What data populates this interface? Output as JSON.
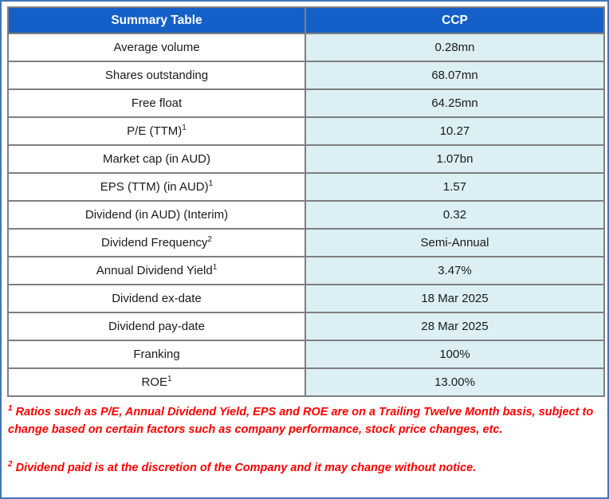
{
  "table": {
    "header": {
      "col1": "Summary Table",
      "col2": "CCP"
    },
    "rows": [
      {
        "label": "Average volume",
        "sup": "",
        "value": "0.28mn"
      },
      {
        "label": "Shares outstanding",
        "sup": "",
        "value": "68.07mn"
      },
      {
        "label": "Free float",
        "sup": "",
        "value": "64.25mn"
      },
      {
        "label": "P/E (TTM)",
        "sup": "1",
        "value": "10.27"
      },
      {
        "label": "Market cap (in AUD)",
        "sup": "",
        "value": "1.07bn"
      },
      {
        "label": "EPS (TTM) (in AUD)",
        "sup": "1",
        "value": "1.57"
      },
      {
        "label": "Dividend (in AUD) (Interim)",
        "sup": "",
        "value": "0.32"
      },
      {
        "label": "Dividend Frequency",
        "sup": "2",
        "value": "Semi-Annual"
      },
      {
        "label": "Annual Dividend Yield",
        "sup": "1",
        "value": "3.47%"
      },
      {
        "label": "Dividend ex-date",
        "sup": "",
        "value": "18 Mar 2025"
      },
      {
        "label": "Dividend pay-date",
        "sup": "",
        "value": "28 Mar 2025"
      },
      {
        "label": "Franking",
        "sup": "",
        "value": "100%"
      },
      {
        "label": "ROE",
        "sup": "1",
        "value": "13.00%"
      }
    ]
  },
  "footnotes": [
    {
      "sup": "1",
      "text": "Ratios such as P/E, Annual Dividend Yield, EPS and ROE are on a Trailing Twelve Month basis, subject to change based on certain factors such as company performance, stock price changes, etc."
    },
    {
      "sup": "2",
      "text": "Dividend paid is at the discretion of the Company and it may change without notice."
    }
  ],
  "colors": {
    "header_bg": "#1560C8",
    "header_text": "#FFFFFF",
    "value_cell_bg": "#DCEFF5",
    "grid_border": "#7F7F7F",
    "outer_frame": "#4575B4",
    "footnote_text": "#FF0000"
  },
  "chart_data": {
    "type": "table",
    "title": "Summary Table",
    "columns": [
      "Summary Table",
      "CCP"
    ],
    "rows": [
      [
        "Average volume",
        "0.28mn"
      ],
      [
        "Shares outstanding",
        "68.07mn"
      ],
      [
        "Free float",
        "64.25mn"
      ],
      [
        "P/E (TTM)¹",
        "10.27"
      ],
      [
        "Market cap (in AUD)",
        "1.07bn"
      ],
      [
        "EPS (TTM) (in AUD)¹",
        "1.57"
      ],
      [
        "Dividend (in AUD) (Interim)",
        "0.32"
      ],
      [
        "Dividend Frequency²",
        "Semi-Annual"
      ],
      [
        "Annual Dividend Yield¹",
        "3.47%"
      ],
      [
        "Dividend ex-date",
        "18 Mar 2025"
      ],
      [
        "Dividend pay-date",
        "28 Mar 2025"
      ],
      [
        "Franking",
        "100%"
      ],
      [
        "ROE¹",
        "13.00%"
      ]
    ],
    "footnotes": [
      "¹ Ratios such as P/E, Annual Dividend Yield, EPS and ROE are on a Trailing Twelve Month basis, subject to change based on certain factors such as company performance, stock price changes, etc.",
      "² Dividend paid is at the discretion of the Company and it may change without notice."
    ]
  }
}
